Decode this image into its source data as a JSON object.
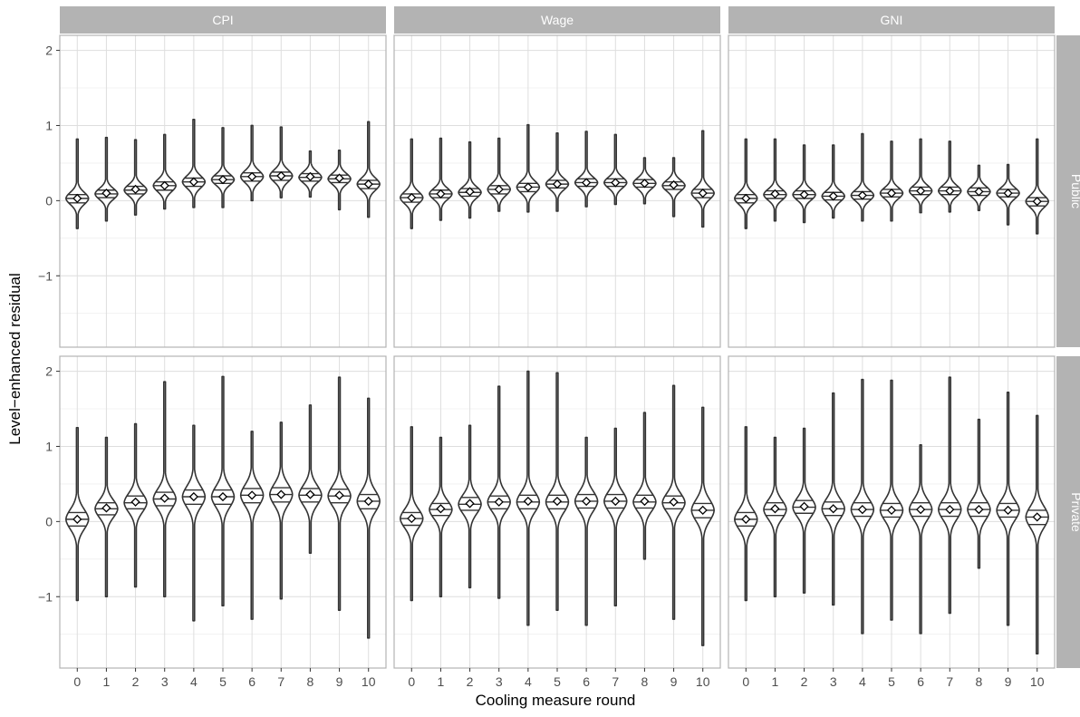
{
  "chart_data": {
    "type": "violin",
    "xlabel": "Cooling measure round",
    "ylabel": "Level−enhanced residual",
    "x_ticks": [
      "0",
      "1",
      "2",
      "3",
      "4",
      "5",
      "6",
      "7",
      "8",
      "9",
      "10"
    ],
    "y_ticks": [
      {
        "value": -1,
        "label": "−1"
      },
      {
        "value": 0,
        "label": "0"
      },
      {
        "value": 1,
        "label": "1"
      },
      {
        "value": 2,
        "label": "2"
      }
    ],
    "ylim": [
      -1.95,
      2.2
    ],
    "grid": true,
    "column_facets": [
      "CPI",
      "Wage",
      "GNI"
    ],
    "row_facets": [
      "Public",
      "Private"
    ],
    "panels": [
      {
        "column": "CPI",
        "row": "Public",
        "mean": [
          0.03,
          0.1,
          0.15,
          0.2,
          0.25,
          0.28,
          0.32,
          0.33,
          0.32,
          0.3,
          0.22
        ],
        "median": [
          0.03,
          0.09,
          0.14,
          0.2,
          0.25,
          0.28,
          0.32,
          0.33,
          0.31,
          0.29,
          0.22
        ],
        "q1": [
          -0.03,
          0.04,
          0.09,
          0.14,
          0.19,
          0.23,
          0.26,
          0.27,
          0.26,
          0.24,
          0.16
        ],
        "q3": [
          0.08,
          0.14,
          0.19,
          0.25,
          0.3,
          0.33,
          0.37,
          0.38,
          0.36,
          0.34,
          0.27
        ],
        "min": [
          -0.37,
          -0.27,
          -0.19,
          -0.11,
          -0.09,
          -0.09,
          0.0,
          0.04,
          0.05,
          -0.12,
          -0.22
        ],
        "max": [
          0.82,
          0.84,
          0.81,
          0.88,
          1.08,
          0.97,
          1.0,
          0.98,
          0.66,
          0.67,
          1.05
        ]
      },
      {
        "column": "Wage",
        "row": "Public",
        "mean": [
          0.04,
          0.09,
          0.12,
          0.15,
          0.18,
          0.22,
          0.24,
          0.24,
          0.23,
          0.21,
          0.1
        ],
        "median": [
          0.04,
          0.09,
          0.11,
          0.15,
          0.18,
          0.22,
          0.24,
          0.24,
          0.23,
          0.2,
          0.1
        ],
        "q1": [
          -0.02,
          0.04,
          0.06,
          0.09,
          0.12,
          0.17,
          0.19,
          0.19,
          0.18,
          0.15,
          0.04
        ],
        "q3": [
          0.09,
          0.14,
          0.16,
          0.2,
          0.23,
          0.27,
          0.29,
          0.29,
          0.28,
          0.25,
          0.15
        ],
        "min": [
          -0.37,
          -0.26,
          -0.23,
          -0.14,
          -0.15,
          -0.14,
          -0.08,
          -0.05,
          -0.04,
          -0.21,
          -0.35
        ],
        "max": [
          0.82,
          0.83,
          0.78,
          0.83,
          1.01,
          0.9,
          0.92,
          0.88,
          0.57,
          0.57,
          0.93
        ]
      },
      {
        "column": "GNI",
        "row": "Public",
        "mean": [
          0.03,
          0.09,
          0.08,
          0.06,
          0.07,
          0.1,
          0.13,
          0.13,
          0.12,
          0.1,
          -0.01
        ],
        "median": [
          0.03,
          0.08,
          0.08,
          0.06,
          0.07,
          0.1,
          0.13,
          0.13,
          0.12,
          0.1,
          -0.01
        ],
        "q1": [
          -0.03,
          0.03,
          0.03,
          0.01,
          0.02,
          0.05,
          0.08,
          0.08,
          0.07,
          0.05,
          -0.07
        ],
        "q3": [
          0.08,
          0.13,
          0.13,
          0.11,
          0.12,
          0.15,
          0.18,
          0.18,
          0.17,
          0.15,
          0.04
        ],
        "min": [
          -0.37,
          -0.27,
          -0.29,
          -0.23,
          -0.27,
          -0.27,
          -0.16,
          -0.15,
          -0.13,
          -0.32,
          -0.44
        ],
        "max": [
          0.82,
          0.82,
          0.74,
          0.74,
          0.89,
          0.79,
          0.82,
          0.79,
          0.47,
          0.48,
          0.82
        ]
      },
      {
        "column": "CPI",
        "row": "Private",
        "mean": [
          0.03,
          0.18,
          0.26,
          0.31,
          0.33,
          0.33,
          0.35,
          0.36,
          0.36,
          0.35,
          0.27
        ],
        "median": [
          0.03,
          0.17,
          0.25,
          0.3,
          0.33,
          0.33,
          0.35,
          0.36,
          0.35,
          0.34,
          0.27
        ],
        "q1": [
          -0.06,
          0.09,
          0.17,
          0.21,
          0.23,
          0.23,
          0.25,
          0.26,
          0.26,
          0.25,
          0.17
        ],
        "q3": [
          0.12,
          0.25,
          0.34,
          0.39,
          0.42,
          0.42,
          0.44,
          0.45,
          0.44,
          0.43,
          0.36
        ],
        "min": [
          -1.05,
          -1.0,
          -0.87,
          -1.0,
          -1.32,
          -1.12,
          -1.3,
          -1.03,
          -0.42,
          -1.18,
          -1.55
        ],
        "max": [
          1.25,
          1.12,
          1.3,
          1.86,
          1.28,
          1.93,
          1.2,
          1.32,
          1.55,
          1.92,
          1.64
        ]
      },
      {
        "column": "Wage",
        "row": "Private",
        "mean": [
          0.04,
          0.17,
          0.24,
          0.26,
          0.27,
          0.27,
          0.27,
          0.27,
          0.27,
          0.26,
          0.15
        ],
        "median": [
          0.04,
          0.16,
          0.23,
          0.26,
          0.26,
          0.26,
          0.27,
          0.27,
          0.26,
          0.25,
          0.15
        ],
        "q1": [
          -0.05,
          0.08,
          0.15,
          0.17,
          0.17,
          0.17,
          0.18,
          0.18,
          0.18,
          0.17,
          0.05
        ],
        "q3": [
          0.12,
          0.24,
          0.32,
          0.34,
          0.35,
          0.35,
          0.36,
          0.36,
          0.35,
          0.34,
          0.24
        ],
        "min": [
          -1.05,
          -1.0,
          -0.88,
          -1.02,
          -1.38,
          -1.18,
          -1.38,
          -1.12,
          -0.5,
          -1.3,
          -1.65
        ],
        "max": [
          1.26,
          1.12,
          1.28,
          1.8,
          2.0,
          1.98,
          1.12,
          1.24,
          1.45,
          1.81,
          1.52
        ]
      },
      {
        "column": "GNI",
        "row": "Private",
        "mean": [
          0.03,
          0.17,
          0.2,
          0.17,
          0.16,
          0.15,
          0.16,
          0.16,
          0.16,
          0.15,
          0.06
        ],
        "median": [
          0.03,
          0.16,
          0.19,
          0.17,
          0.16,
          0.15,
          0.16,
          0.16,
          0.16,
          0.15,
          0.06
        ],
        "q1": [
          -0.06,
          0.08,
          0.11,
          0.08,
          0.07,
          0.06,
          0.07,
          0.07,
          0.07,
          0.06,
          -0.04
        ],
        "q3": [
          0.12,
          0.25,
          0.28,
          0.26,
          0.25,
          0.24,
          0.25,
          0.25,
          0.25,
          0.24,
          0.15
        ],
        "min": [
          -1.05,
          -1.0,
          -0.95,
          -1.11,
          -1.49,
          -1.31,
          -1.49,
          -1.22,
          -0.62,
          -1.38,
          -1.76
        ],
        "max": [
          1.26,
          1.12,
          1.24,
          1.71,
          1.89,
          1.88,
          1.02,
          1.92,
          1.36,
          1.72,
          1.41
        ]
      }
    ]
  },
  "colors": {
    "strip_fill": "#b3b3b3",
    "strip_text": "#ffffff",
    "panel_border": "#b3b3b3",
    "grid_major": "#dedede",
    "grid_minor": "#efefef",
    "violin_stroke": "#333333",
    "tick_label": "#4d4d4d"
  }
}
